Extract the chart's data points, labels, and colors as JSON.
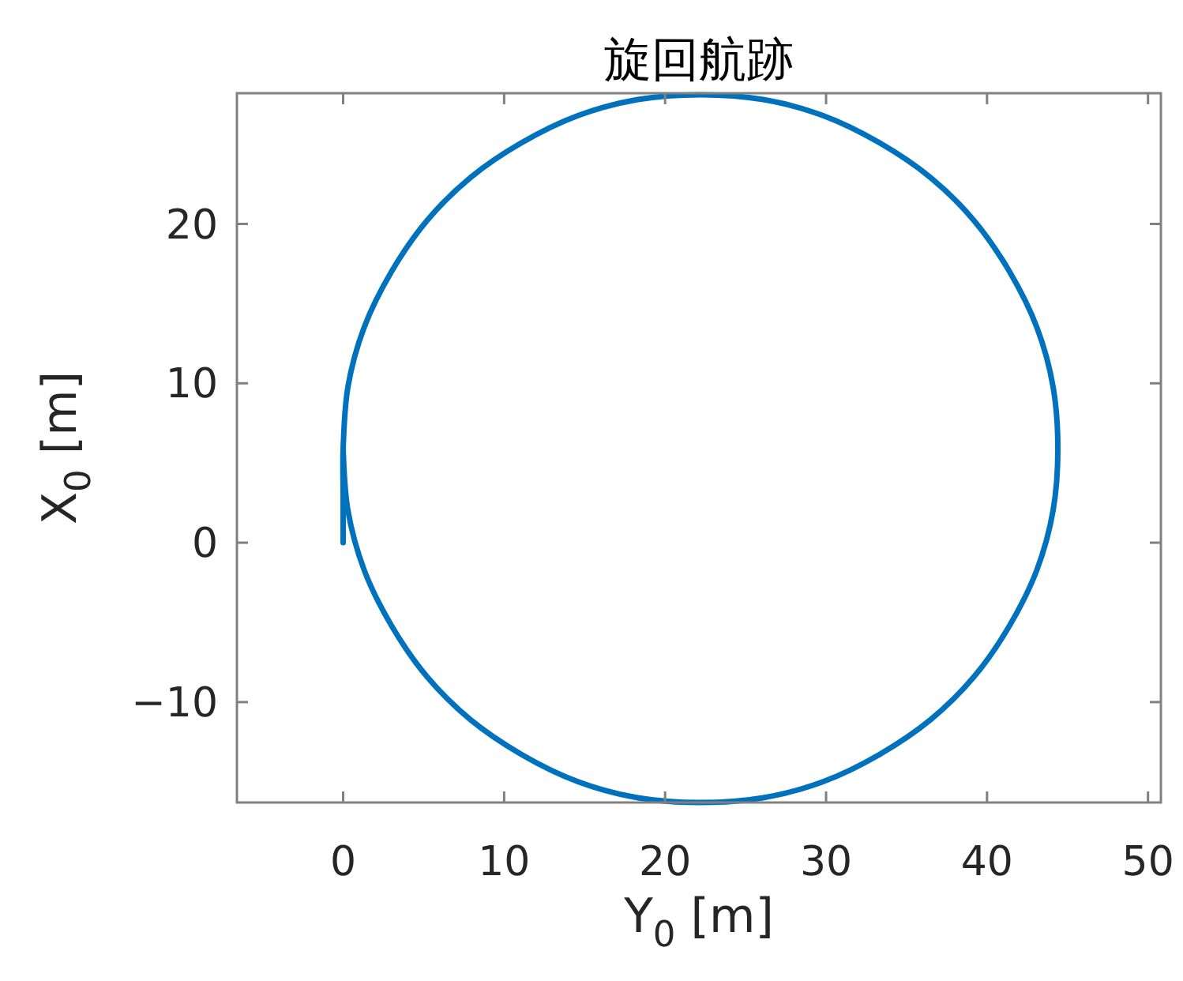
{
  "chart_data": {
    "type": "line",
    "title": "旋回航跡",
    "xlabel": "Y$_{0}$ [m]",
    "ylabel": "X$_{0}$ [m]",
    "x": [
      0,
      0,
      0,
      0.3,
      1.3,
      3.0,
      5.2,
      7.9,
      11.1,
      14.6,
      18.3,
      22.2,
      26.1,
      29.8,
      33.3,
      36.5,
      39.2,
      41.4,
      43.1,
      44.1,
      44.4,
      44.1,
      43.1,
      41.4,
      39.2,
      36.5,
      33.3,
      29.8,
      26.1,
      22.2,
      18.3,
      14.6,
      11.1,
      7.9,
      5.2,
      3.0,
      1.3,
      0.3,
      0
    ],
    "series": [
      {
        "color": "#0072bd",
        "values": [
          0,
          3,
          5.9,
          9.8,
          13.5,
          17.0,
          20.2,
          22.9,
          25.1,
          26.8,
          27.8,
          28.1,
          27.8,
          26.8,
          25.1,
          22.9,
          20.2,
          17.0,
          13.5,
          9.8,
          5.9,
          2.0,
          -1.7,
          -5.2,
          -8.4,
          -11.1,
          -13.3,
          -15.0,
          -16.0,
          -16.3,
          -16.0,
          -15.0,
          -13.3,
          -11.1,
          -8.4,
          -5.2,
          -1.7,
          2.0,
          5.9
        ]
      }
    ],
    "xlim": [
      -6.6,
      50.8
    ],
    "ylim": [
      -16.3,
      28.2
    ],
    "xticks": [
      0,
      10,
      20,
      30,
      40,
      50
    ],
    "yticks": [
      {
        "value": -10,
        "label": "−10"
      },
      0,
      10,
      20
    ]
  }
}
